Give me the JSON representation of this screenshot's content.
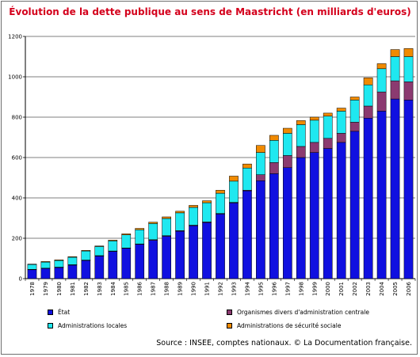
{
  "title": "Évolution de la dette publique au sens de Maastricht (en milliards d'euros)",
  "source": "Source : INSEE, comptes nationaux. © La Documentation française.",
  "colors": {
    "etat": "#1010e0",
    "odac": "#8b3a70",
    "apul": "#1fe8f0",
    "asso": "#f08a00",
    "title": "#d4001c",
    "grid": "#000000"
  },
  "chart_data": {
    "type": "bar",
    "stacked": true,
    "title": "Évolution de la dette publique au sens de Maastricht (en milliards d'euros)",
    "ylim": [
      0,
      1200
    ],
    "yticks": [
      0,
      200,
      400,
      600,
      800,
      1000,
      1200
    ],
    "grid": true,
    "legend_position": "bottom",
    "categories": [
      "1978",
      "1979",
      "1980",
      "1981",
      "1982",
      "1983",
      "1984",
      "1985",
      "1986",
      "1987",
      "1988",
      "1989",
      "1990",
      "1991",
      "1992",
      "1993",
      "1994",
      "1995",
      "1996",
      "1997",
      "1998",
      "1999",
      "2000",
      "2001",
      "2002",
      "2003",
      "2004",
      "2005",
      "2006"
    ],
    "series": [
      {
        "key": "etat",
        "name": "État",
        "values": [
          44,
          50,
          55,
          67,
          90,
          112,
          135,
          150,
          170,
          190,
          210,
          235,
          262,
          278,
          320,
          375,
          435,
          485,
          520,
          550,
          600,
          625,
          645,
          675,
          730,
          795,
          830,
          890,
          885
        ]
      },
      {
        "key": "odac",
        "name": "Organismes divers d'administration centrale",
        "values": [
          2,
          2,
          2,
          2,
          2,
          2,
          2,
          2,
          2,
          3,
          3,
          3,
          3,
          3,
          3,
          3,
          3,
          30,
          55,
          60,
          55,
          50,
          50,
          45,
          45,
          60,
          95,
          90,
          90
        ]
      },
      {
        "key": "apul",
        "name": "Administrations locales",
        "values": [
          24,
          30,
          33,
          37,
          45,
          45,
          50,
          65,
          70,
          80,
          85,
          88,
          88,
          95,
          100,
          105,
          110,
          110,
          110,
          110,
          108,
          110,
          110,
          110,
          110,
          105,
          115,
          120,
          125
        ]
      },
      {
        "key": "asso",
        "name": "Administrations de sécurité sociale",
        "values": [
          2,
          3,
          3,
          3,
          3,
          3,
          4,
          5,
          7,
          7,
          8,
          8,
          10,
          10,
          15,
          25,
          20,
          35,
          25,
          25,
          20,
          15,
          15,
          15,
          15,
          35,
          25,
          35,
          40
        ]
      }
    ]
  }
}
